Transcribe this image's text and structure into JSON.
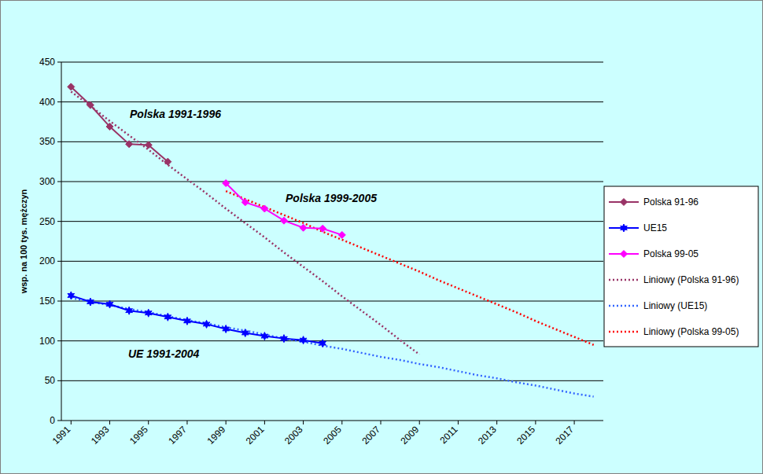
{
  "chart_data": {
    "type": "line",
    "ylabel": "wsp. na 100 tys. mężczyn",
    "annotations": [
      "Polska 1991-1996",
      "Polska 1999-2005",
      "UE 1991-2004"
    ],
    "x": [
      1991,
      1992,
      1993,
      1994,
      1995,
      1996,
      1997,
      1998,
      1999,
      2000,
      2001,
      2002,
      2003,
      2004,
      2005,
      2006,
      2007,
      2008,
      2009,
      2010,
      2011,
      2012,
      2013,
      2014,
      2015,
      2016,
      2017,
      2018
    ],
    "xlim": [
      1990.5,
      2018.5
    ],
    "xticks": [
      1991,
      1993,
      1995,
      1997,
      1999,
      2001,
      2003,
      2005,
      2007,
      2009,
      2011,
      2013,
      2015,
      2017
    ],
    "ylim": [
      0,
      450
    ],
    "yticks": [
      0,
      50,
      100,
      150,
      200,
      250,
      300,
      350,
      400,
      450
    ],
    "grid": true,
    "legend": "right",
    "series": [
      {
        "name": "Polska 91-96",
        "color": "#993366",
        "marker": "diamond",
        "line_style": "solid",
        "values": [
          419,
          396,
          369,
          347,
          346,
          325,
          null,
          null,
          null,
          null,
          null,
          null,
          null,
          null,
          null,
          null,
          null,
          null,
          null,
          null,
          null,
          null,
          null,
          null,
          null,
          null,
          null,
          null
        ]
      },
      {
        "name": "UE15",
        "color": "#0000ff",
        "marker": "star",
        "line_style": "solid",
        "values": [
          157,
          149,
          146,
          138,
          135,
          130,
          125,
          121,
          115,
          110,
          106,
          103,
          101,
          97,
          null,
          null,
          null,
          null,
          null,
          null,
          null,
          null,
          null,
          null,
          null,
          null,
          null,
          null
        ]
      },
      {
        "name": "Polska 99-05",
        "color": "#ff00ff",
        "marker": "diamond",
        "line_style": "solid",
        "values": [
          null,
          null,
          null,
          null,
          null,
          null,
          null,
          null,
          298,
          274,
          266,
          251,
          242,
          241,
          233,
          null,
          null,
          null,
          null,
          null,
          null,
          null,
          null,
          null,
          null,
          null,
          null,
          null
        ]
      },
      {
        "name": "Liniowy (Polska 91-96)",
        "color": "#993366",
        "marker": "none",
        "line_style": "dotted",
        "values": [
          413,
          395,
          376,
          358,
          340,
          321,
          303,
          285,
          266,
          248,
          230,
          211,
          193,
          175,
          156,
          138,
          120,
          101,
          83,
          null,
          null,
          null,
          null,
          null,
          null,
          null,
          null,
          null
        ]
      },
      {
        "name": "Liniowy (UE15)",
        "color": "#3366ff",
        "marker": "none",
        "line_style": "dotted",
        "values": [
          154,
          149,
          145,
          140,
          136,
          131,
          126,
          122,
          117,
          113,
          108,
          103,
          99,
          94,
          90,
          85,
          80,
          76,
          71,
          67,
          62,
          57,
          53,
          48,
          44,
          39,
          34,
          30
        ]
      },
      {
        "name": "Liniowy (Polska 99-05)",
        "color": "#ff0000",
        "marker": "none",
        "line_style": "dotted",
        "values": [
          null,
          null,
          null,
          null,
          null,
          null,
          null,
          null,
          288,
          278,
          268,
          258,
          248,
          237,
          227,
          217,
          207,
          197,
          187,
          176,
          166,
          156,
          146,
          136,
          125,
          115,
          105,
          95
        ]
      }
    ]
  }
}
